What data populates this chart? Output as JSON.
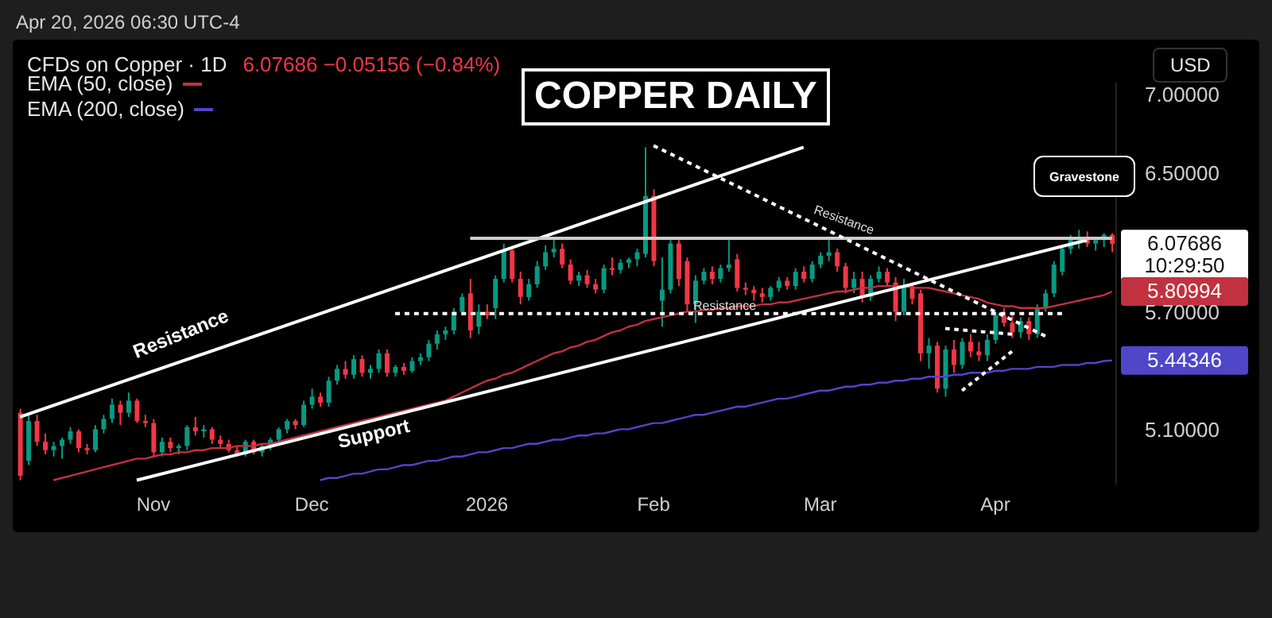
{
  "chart_data": {
    "type": "candlestick",
    "title": "COPPER DAILY",
    "subtitle": "CFDs on Copper · 1D",
    "annotations": [
      "Apr 20, 2026 06:30 UTC-4",
      "6.07686 −0.05156 (−0.84%)",
      "USD",
      "Resistance",
      "Support",
      "Resistance",
      "Resistance",
      "Gravestone",
      "10:29:50",
      "6.07686",
      "5.80994",
      "5.44346"
    ],
    "categories": [
      null,
      null,
      null,
      null,
      null,
      null,
      null,
      null,
      null,
      null,
      null,
      null,
      null,
      null,
      null,
      null,
      "Nov",
      null,
      null,
      null,
      null,
      null,
      null,
      null,
      null,
      null,
      null,
      null,
      null,
      null,
      null,
      null,
      null,
      null,
      null,
      "Dec",
      null,
      null,
      null,
      null,
      null,
      null,
      null,
      null,
      null,
      null,
      null,
      null,
      null,
      null,
      null,
      null,
      null,
      null,
      null,
      null,
      "2026",
      null,
      null,
      null,
      null,
      null,
      null,
      null,
      null,
      null,
      null,
      null,
      null,
      null,
      null,
      null,
      null,
      null,
      null,
      null,
      "Feb",
      null,
      null,
      null,
      null,
      null,
      null,
      null,
      null,
      null,
      null,
      null,
      null,
      null,
      null,
      null,
      null,
      null,
      null,
      null,
      "Mar",
      null,
      null,
      null,
      null,
      null,
      null,
      null,
      null,
      null,
      null,
      null,
      null,
      null,
      null,
      null,
      null,
      null,
      null,
      null,
      null,
      "Apr",
      null,
      null,
      null,
      null,
      null,
      null,
      null,
      null,
      null,
      null,
      null,
      null,
      null,
      null
    ],
    "ohlc": [
      [
        5.18,
        5.2,
        4.86,
        4.88
      ],
      [
        4.95,
        5.17,
        4.93,
        5.14
      ],
      [
        5.14,
        5.17,
        5.02,
        5.04
      ],
      [
        5.04,
        5.08,
        4.98,
        5.0
      ],
      [
        5.0,
        5.04,
        4.97,
        5.02
      ],
      [
        5.02,
        5.06,
        4.96,
        5.05
      ],
      [
        5.05,
        5.11,
        5.03,
        5.09
      ],
      [
        5.09,
        5.1,
        4.99,
        5.01
      ],
      [
        5.01,
        5.03,
        4.98,
        5.0
      ],
      [
        5.0,
        5.12,
        4.99,
        5.1
      ],
      [
        5.1,
        5.17,
        5.08,
        5.15
      ],
      [
        5.15,
        5.25,
        5.13,
        5.22
      ],
      [
        5.22,
        5.24,
        5.12,
        5.18
      ],
      [
        5.18,
        5.28,
        5.16,
        5.24
      ],
      [
        5.24,
        5.25,
        5.13,
        5.14
      ],
      [
        5.14,
        5.17,
        5.11,
        5.13
      ],
      [
        5.13,
        5.15,
        4.97,
        4.99
      ],
      [
        4.99,
        5.06,
        4.97,
        5.04
      ],
      [
        5.04,
        5.06,
        4.99,
        5.01
      ],
      [
        5.01,
        5.03,
        4.98,
        5.02
      ],
      [
        5.02,
        5.12,
        5.0,
        5.11
      ],
      [
        5.11,
        5.16,
        5.07,
        5.09
      ],
      [
        5.09,
        5.12,
        5.06,
        5.1
      ],
      [
        5.1,
        5.11,
        5.03,
        5.05
      ],
      [
        5.05,
        5.07,
        5.01,
        5.03
      ],
      [
        5.03,
        5.05,
        4.99,
        5.0
      ],
      [
        5.0,
        5.02,
        4.97,
        4.98
      ],
      [
        4.98,
        5.05,
        4.97,
        5.04
      ],
      [
        5.04,
        5.05,
        4.98,
        4.99
      ],
      [
        4.99,
        5.03,
        4.97,
        5.02
      ],
      [
        5.02,
        5.06,
        5.0,
        5.05
      ],
      [
        5.05,
        5.11,
        5.04,
        5.1
      ],
      [
        5.1,
        5.15,
        5.08,
        5.14
      ],
      [
        5.14,
        5.15,
        5.1,
        5.12
      ],
      [
        5.12,
        5.24,
        5.11,
        5.22
      ],
      [
        5.22,
        5.3,
        5.2,
        5.26
      ],
      [
        5.26,
        5.28,
        5.21,
        5.23
      ],
      [
        5.23,
        5.36,
        5.21,
        5.34
      ],
      [
        5.34,
        5.42,
        5.32,
        5.4
      ],
      [
        5.4,
        5.44,
        5.35,
        5.37
      ],
      [
        5.37,
        5.47,
        5.35,
        5.45
      ],
      [
        5.45,
        5.47,
        5.36,
        5.38
      ],
      [
        5.38,
        5.42,
        5.35,
        5.4
      ],
      [
        5.4,
        5.5,
        5.38,
        5.48
      ],
      [
        5.48,
        5.5,
        5.36,
        5.38
      ],
      [
        5.38,
        5.42,
        5.36,
        5.41
      ],
      [
        5.41,
        5.43,
        5.37,
        5.39
      ],
      [
        5.39,
        5.46,
        5.38,
        5.44
      ],
      [
        5.44,
        5.48,
        5.42,
        5.46
      ],
      [
        5.46,
        5.55,
        5.44,
        5.53
      ],
      [
        5.53,
        5.6,
        5.5,
        5.58
      ],
      [
        5.58,
        5.62,
        5.55,
        5.6
      ],
      [
        5.6,
        5.72,
        5.58,
        5.7
      ],
      [
        5.7,
        5.8,
        5.68,
        5.78
      ],
      [
        5.8,
        5.88,
        5.56,
        5.6
      ],
      [
        5.62,
        5.74,
        5.58,
        5.7
      ],
      [
        5.7,
        5.74,
        5.66,
        5.68
      ],
      [
        5.72,
        5.9,
        5.66,
        5.88
      ],
      [
        5.88,
        6.08,
        5.86,
        6.04
      ],
      [
        6.04,
        6.06,
        5.86,
        5.88
      ],
      [
        5.88,
        5.92,
        5.74,
        5.78
      ],
      [
        5.78,
        5.88,
        5.76,
        5.85
      ],
      [
        5.85,
        5.98,
        5.83,
        5.95
      ],
      [
        5.95,
        6.07,
        5.93,
        6.03
      ],
      [
        6.03,
        6.1,
        6.0,
        6.05
      ],
      [
        6.05,
        6.08,
        5.94,
        5.96
      ],
      [
        5.96,
        5.99,
        5.85,
        5.87
      ],
      [
        5.87,
        5.92,
        5.84,
        5.9
      ],
      [
        5.9,
        5.93,
        5.83,
        5.85
      ],
      [
        5.85,
        5.88,
        5.8,
        5.82
      ],
      [
        5.82,
        5.96,
        5.8,
        5.94
      ],
      [
        5.94,
        6.0,
        5.9,
        5.93
      ],
      [
        5.93,
        5.99,
        5.91,
        5.97
      ],
      [
        5.97,
        6.0,
        5.94,
        5.99
      ],
      [
        5.99,
        6.05,
        5.95,
        6.03
      ],
      [
        6.02,
        6.66,
        6.0,
        6.36
      ],
      [
        6.36,
        6.4,
        5.95,
        5.98
      ],
      [
        5.76,
        6.0,
        5.62,
        5.82
      ],
      [
        5.82,
        6.1,
        5.8,
        6.08
      ],
      [
        6.08,
        6.1,
        5.84,
        5.88
      ],
      [
        5.98,
        6.0,
        5.7,
        5.74
      ],
      [
        5.74,
        5.9,
        5.64,
        5.87
      ],
      [
        5.87,
        5.94,
        5.85,
        5.92
      ],
      [
        5.92,
        5.95,
        5.85,
        5.88
      ],
      [
        5.88,
        5.96,
        5.86,
        5.94
      ],
      [
        5.94,
        6.1,
        5.92,
        5.96
      ],
      [
        5.99,
        6.02,
        5.81,
        5.83
      ],
      [
        5.83,
        5.86,
        5.79,
        5.82
      ],
      [
        5.82,
        5.84,
        5.76,
        5.8
      ],
      [
        5.8,
        5.83,
        5.75,
        5.78
      ],
      [
        5.78,
        5.84,
        5.76,
        5.83
      ],
      [
        5.83,
        5.89,
        5.81,
        5.87
      ],
      [
        5.87,
        5.89,
        5.82,
        5.84
      ],
      [
        5.84,
        5.94,
        5.82,
        5.92
      ],
      [
        5.92,
        5.95,
        5.86,
        5.88
      ],
      [
        5.88,
        5.98,
        5.86,
        5.96
      ],
      [
        5.96,
        6.03,
        5.94,
        6.01
      ],
      [
        6.01,
        6.1,
        5.98,
        6.03
      ],
      [
        6.03,
        6.05,
        5.92,
        5.95
      ],
      [
        5.95,
        5.97,
        5.8,
        5.83
      ],
      [
        5.83,
        5.92,
        5.8,
        5.88
      ],
      [
        5.88,
        5.92,
        5.75,
        5.78
      ],
      [
        5.78,
        5.9,
        5.76,
        5.88
      ],
      [
        5.88,
        5.95,
        5.86,
        5.92
      ],
      [
        5.92,
        5.94,
        5.84,
        5.86
      ],
      [
        5.86,
        5.89,
        5.65,
        5.7
      ],
      [
        5.7,
        5.88,
        5.68,
        5.84
      ],
      [
        5.84,
        5.86,
        5.74,
        5.77
      ],
      [
        5.8,
        5.82,
        5.44,
        5.48
      ],
      [
        5.48,
        5.56,
        5.4,
        5.52
      ],
      [
        5.52,
        5.54,
        5.28,
        5.3
      ],
      [
        5.3,
        5.52,
        5.26,
        5.5
      ],
      [
        5.5,
        5.55,
        5.38,
        5.42
      ],
      [
        5.42,
        5.56,
        5.4,
        5.54
      ],
      [
        5.54,
        5.58,
        5.46,
        5.49
      ],
      [
        5.49,
        5.54,
        5.44,
        5.47
      ],
      [
        5.47,
        5.58,
        5.44,
        5.55
      ],
      [
        5.55,
        5.7,
        5.53,
        5.68
      ],
      [
        5.68,
        5.72,
        5.62,
        5.64
      ],
      [
        5.64,
        5.68,
        5.56,
        5.59
      ],
      [
        5.59,
        5.67,
        5.56,
        5.65
      ],
      [
        5.65,
        5.67,
        5.55,
        5.58
      ],
      [
        5.58,
        5.74,
        5.56,
        5.72
      ],
      [
        5.72,
        5.82,
        5.7,
        5.8
      ],
      [
        5.8,
        5.98,
        5.78,
        5.96
      ],
      [
        5.92,
        6.07,
        5.9,
        6.05
      ],
      [
        6.05,
        6.13,
        6.02,
        6.1
      ],
      [
        6.1,
        6.16,
        6.05,
        6.12
      ],
      [
        6.12,
        6.15,
        6.06,
        6.08
      ],
      [
        6.08,
        6.12,
        6.04,
        6.1
      ],
      [
        6.1,
        6.14,
        6.06,
        6.13
      ],
      [
        6.13,
        6.14,
        6.03,
        6.07686
      ]
    ],
    "ylim": [
      4.84,
      7.08
    ],
    "yticks": [
      {
        "value": 5.1,
        "label": "5.10000"
      },
      {
        "value": 5.7,
        "label": "5.70000"
      },
      {
        "value": 6.5,
        "label": "6.50000"
      },
      {
        "value": 7.0,
        "label": "7.00000"
      }
    ],
    "log": true,
    "legend": "top left",
    "data_labels": false,
    "series": [
      {
        "type": "line",
        "name": "EMA (50, close)",
        "color": "#c2313f",
        "values": [
          null,
          null,
          null,
          null,
          4.86,
          4.87,
          4.88,
          4.89,
          4.9,
          4.91,
          4.92,
          4.93,
          4.94,
          4.95,
          4.96,
          4.96,
          4.97,
          4.98,
          4.98,
          4.99,
          4.99,
          5.0,
          5.0,
          5.01,
          5.01,
          5.01,
          5.02,
          5.02,
          5.02,
          5.03,
          5.03,
          5.04,
          5.05,
          5.06,
          5.07,
          5.08,
          5.09,
          5.1,
          5.11,
          5.12,
          5.13,
          5.14,
          5.15,
          5.16,
          5.17,
          5.18,
          5.19,
          5.2,
          5.21,
          5.22,
          5.23,
          5.24,
          5.26,
          5.28,
          5.3,
          5.32,
          5.34,
          5.35,
          5.37,
          5.38,
          5.4,
          5.42,
          5.44,
          5.46,
          5.48,
          5.49,
          5.51,
          5.52,
          5.54,
          5.55,
          5.57,
          5.59,
          5.6,
          5.62,
          5.63,
          5.65,
          5.66,
          5.67,
          5.68,
          5.69,
          5.7,
          5.7,
          5.71,
          5.71,
          5.72,
          5.72,
          5.73,
          5.73,
          5.73,
          5.74,
          5.74,
          5.75,
          5.75,
          5.76,
          5.77,
          5.78,
          5.79,
          5.8,
          5.81,
          5.81,
          5.82,
          5.83,
          5.83,
          5.84,
          5.84,
          5.84,
          5.84,
          5.83,
          5.83,
          5.83,
          5.82,
          5.81,
          5.8,
          5.79,
          5.78,
          5.77,
          5.75,
          5.74,
          5.73,
          5.73,
          5.72,
          5.72,
          5.72,
          5.72,
          5.73,
          5.74,
          5.75,
          5.76,
          5.77,
          5.78,
          5.79,
          5.80994
        ]
      },
      {
        "type": "line",
        "name": "EMA (200, close)",
        "color": "#4f46c8",
        "values": [
          null,
          null,
          null,
          null,
          null,
          null,
          null,
          null,
          null,
          null,
          null,
          null,
          null,
          null,
          null,
          null,
          null,
          null,
          null,
          null,
          null,
          null,
          null,
          null,
          null,
          null,
          null,
          null,
          null,
          null,
          null,
          null,
          null,
          null,
          null,
          null,
          4.86,
          4.87,
          4.87,
          4.88,
          4.89,
          4.89,
          4.9,
          4.91,
          4.91,
          4.92,
          4.93,
          4.93,
          4.94,
          4.95,
          4.95,
          4.96,
          4.97,
          4.97,
          4.98,
          4.99,
          4.99,
          5.0,
          5.01,
          5.01,
          5.02,
          5.03,
          5.03,
          5.04,
          5.05,
          5.05,
          5.06,
          5.07,
          5.07,
          5.08,
          5.08,
          5.09,
          5.1,
          5.1,
          5.11,
          5.12,
          5.13,
          5.13,
          5.14,
          5.15,
          5.16,
          5.17,
          5.17,
          5.18,
          5.19,
          5.2,
          5.21,
          5.21,
          5.22,
          5.23,
          5.24,
          5.25,
          5.25,
          5.26,
          5.27,
          5.28,
          5.29,
          5.29,
          5.3,
          5.31,
          5.31,
          5.32,
          5.32,
          5.33,
          5.33,
          5.34,
          5.34,
          5.35,
          5.35,
          5.36,
          5.36,
          5.36,
          5.37,
          5.37,
          5.38,
          5.38,
          5.38,
          5.39,
          5.39,
          5.4,
          5.4,
          5.4,
          5.41,
          5.41,
          5.41,
          5.42,
          5.42,
          5.42,
          5.43,
          5.43,
          5.44,
          5.44346
        ]
      },
      {
        "type": "line",
        "color": "#ffffff",
        "line_style": "solid",
        "values": [
          5.16,
          null,
          null,
          null,
          null,
          null,
          null,
          null,
          null,
          null,
          null,
          null,
          null,
          null,
          null,
          null,
          null,
          null,
          null,
          null,
          null,
          null,
          null,
          null,
          null,
          null,
          null,
          null,
          null,
          null,
          null,
          null,
          null,
          null,
          null,
          null,
          null,
          null,
          null,
          null,
          null,
          null,
          null,
          null,
          null,
          null,
          null,
          null,
          null,
          null,
          null,
          null,
          null,
          null,
          null,
          null,
          null,
          null,
          null,
          null,
          null,
          null,
          null,
          null,
          null,
          null,
          null,
          null,
          null,
          null,
          null,
          null,
          null,
          null,
          null,
          null,
          null,
          null,
          null,
          null,
          null,
          null,
          null,
          null,
          null,
          null,
          null,
          null,
          null,
          null,
          null,
          null,
          null,
          null,
          6.66,
          null,
          null,
          null,
          null,
          null,
          null,
          null,
          null,
          null,
          null,
          null,
          null,
          null,
          null,
          null,
          null,
          null,
          null,
          null,
          null,
          null,
          null,
          null,
          null,
          null,
          null,
          null,
          null,
          null,
          null,
          null,
          null,
          null,
          null,
          null,
          null,
          null
        ]
      },
      {
        "type": "line",
        "color": "#ffffff",
        "line_style": "solid",
        "values": [
          null,
          null,
          null,
          null,
          null,
          null,
          null,
          null,
          null,
          null,
          null,
          null,
          null,
          null,
          4.86,
          null,
          null,
          null,
          null,
          null,
          null,
          null,
          null,
          null,
          null,
          null,
          null,
          null,
          null,
          null,
          null,
          null,
          null,
          null,
          null,
          null,
          null,
          null,
          null,
          null,
          null,
          null,
          null,
          null,
          null,
          null,
          null,
          null,
          null,
          null,
          null,
          null,
          null,
          null,
          null,
          null,
          null,
          null,
          null,
          null,
          null,
          null,
          null,
          null,
          null,
          null,
          null,
          null,
          null,
          null,
          null,
          null,
          null,
          null,
          null,
          null,
          null,
          null,
          null,
          null,
          null,
          null,
          null,
          null,
          null,
          null,
          null,
          null,
          null,
          null,
          null,
          null,
          null,
          null,
          null,
          null,
          null,
          null,
          null,
          null,
          null,
          null,
          null,
          null,
          null,
          null,
          null,
          null,
          null,
          null,
          null,
          null,
          null,
          null,
          null,
          null,
          null,
          null,
          null,
          null,
          null,
          null,
          null,
          null,
          null,
          null,
          null,
          null,
          6.1,
          null,
          null,
          null
        ]
      },
      {
        "type": "line",
        "color": "#cccccc",
        "line_style": "solid",
        "values": [
          null,
          null,
          null,
          null,
          null,
          null,
          null,
          null,
          null,
          null,
          null,
          null,
          null,
          null,
          null,
          null,
          null,
          null,
          null,
          null,
          null,
          null,
          null,
          null,
          null,
          null,
          null,
          null,
          null,
          null,
          null,
          null,
          null,
          null,
          null,
          null,
          null,
          null,
          null,
          null,
          null,
          null,
          null,
          null,
          null,
          null,
          null,
          null,
          null,
          null,
          null,
          null,
          null,
          null,
          6.11,
          null,
          null,
          null,
          null,
          null,
          null,
          null,
          null,
          null,
          null,
          null,
          null,
          null,
          null,
          null,
          null,
          null,
          null,
          null,
          null,
          null,
          null,
          null,
          null,
          null,
          null,
          null,
          null,
          null,
          null,
          null,
          null,
          null,
          null,
          null,
          null,
          null,
          null,
          null,
          null,
          null,
          null,
          null,
          null,
          null,
          null,
          null,
          null,
          null,
          null,
          null,
          null,
          null,
          null,
          null,
          null,
          null,
          null,
          null,
          null,
          null,
          null,
          null,
          null,
          null,
          null,
          null,
          null,
          null,
          null,
          null,
          null,
          null,
          null,
          null,
          null,
          6.11
        ]
      },
      {
        "type": "line",
        "color": "#ffffff",
        "line_style": "dotted",
        "values": [
          null,
          null,
          null,
          null,
          null,
          null,
          null,
          null,
          null,
          null,
          null,
          null,
          null,
          null,
          null,
          null,
          null,
          null,
          null,
          null,
          null,
          null,
          null,
          null,
          null,
          null,
          null,
          null,
          null,
          null,
          null,
          null,
          null,
          null,
          null,
          null,
          null,
          null,
          null,
          null,
          null,
          null,
          null,
          null,
          null,
          5.69,
          null,
          null,
          null,
          null,
          null,
          null,
          null,
          null,
          null,
          null,
          null,
          null,
          null,
          null,
          null,
          null,
          null,
          null,
          null,
          null,
          null,
          null,
          null,
          null,
          null,
          null,
          null,
          null,
          null,
          null,
          null,
          null,
          null,
          null,
          null,
          null,
          null,
          null,
          null,
          null,
          null,
          null,
          null,
          null,
          null,
          null,
          null,
          null,
          null,
          null,
          null,
          null,
          null,
          null,
          null,
          null,
          null,
          null,
          null,
          null,
          null,
          null,
          null,
          null,
          null,
          null,
          null,
          null,
          null,
          null,
          null,
          null,
          null,
          null,
          null,
          null,
          null,
          null,
          null,
          5.69,
          null,
          null,
          null,
          null,
          null,
          null
        ]
      },
      {
        "type": "line",
        "color": "#ffffff",
        "line_style": "dotted",
        "values": [
          null,
          null,
          null,
          null,
          null,
          null,
          null,
          null,
          null,
          null,
          null,
          null,
          null,
          null,
          null,
          null,
          null,
          null,
          null,
          null,
          null,
          null,
          null,
          null,
          null,
          null,
          null,
          null,
          null,
          null,
          null,
          null,
          null,
          null,
          null,
          null,
          null,
          null,
          null,
          null,
          null,
          null,
          null,
          null,
          null,
          null,
          null,
          null,
          null,
          null,
          null,
          null,
          null,
          null,
          null,
          null,
          null,
          null,
          null,
          null,
          null,
          null,
          null,
          null,
          null,
          null,
          null,
          null,
          null,
          null,
          null,
          null,
          null,
          null,
          null,
          null,
          6.67,
          null,
          null,
          null,
          null,
          null,
          null,
          null,
          null,
          null,
          null,
          null,
          null,
          null,
          null,
          null,
          null,
          null,
          null,
          null,
          null,
          null,
          null,
          null,
          null,
          null,
          null,
          null,
          null,
          null,
          null,
          null,
          null,
          null,
          null,
          null,
          null,
          null,
          null,
          null,
          null,
          null,
          null,
          null,
          null,
          null,
          null,
          5.57,
          null,
          null,
          null,
          null,
          null,
          null,
          null,
          null
        ]
      },
      {
        "type": "line",
        "color": "#ffffff",
        "line_style": "dotted",
        "values": [
          null,
          null,
          null,
          null,
          null,
          null,
          null,
          null,
          null,
          null,
          null,
          null,
          null,
          null,
          null,
          null,
          null,
          null,
          null,
          null,
          null,
          null,
          null,
          null,
          null,
          null,
          null,
          null,
          null,
          null,
          null,
          null,
          null,
          null,
          null,
          null,
          null,
          null,
          null,
          null,
          null,
          null,
          null,
          null,
          null,
          null,
          null,
          null,
          null,
          null,
          null,
          null,
          null,
          null,
          null,
          null,
          null,
          null,
          null,
          null,
          null,
          null,
          null,
          null,
          null,
          null,
          null,
          null,
          null,
          null,
          null,
          null,
          null,
          null,
          null,
          null,
          null,
          null,
          null,
          null,
          null,
          null,
          null,
          null,
          null,
          null,
          null,
          null,
          null,
          null,
          null,
          null,
          null,
          null,
          null,
          null,
          null,
          null,
          null,
          null,
          null,
          null,
          null,
          null,
          null,
          null,
          null,
          null,
          null,
          null,
          null,
          5.61,
          null,
          null,
          null,
          null,
          null,
          null,
          null,
          5.58,
          null,
          null,
          null,
          null,
          null,
          null,
          null,
          null,
          null,
          null,
          null,
          null
        ]
      },
      {
        "type": "line",
        "color": "#ffffff",
        "line_style": "dotted",
        "values": [
          null,
          null,
          null,
          null,
          null,
          null,
          null,
          null,
          null,
          null,
          null,
          null,
          null,
          null,
          null,
          null,
          null,
          null,
          null,
          null,
          null,
          null,
          null,
          null,
          null,
          null,
          null,
          null,
          null,
          null,
          null,
          null,
          null,
          null,
          null,
          null,
          null,
          null,
          null,
          null,
          null,
          null,
          null,
          null,
          null,
          null,
          null,
          null,
          null,
          null,
          null,
          null,
          null,
          null,
          null,
          null,
          null,
          null,
          null,
          null,
          null,
          null,
          null,
          null,
          null,
          null,
          null,
          null,
          null,
          null,
          null,
          null,
          null,
          null,
          null,
          null,
          null,
          null,
          null,
          null,
          null,
          null,
          null,
          null,
          null,
          null,
          null,
          null,
          null,
          null,
          null,
          null,
          null,
          null,
          null,
          null,
          null,
          null,
          null,
          null,
          null,
          null,
          null,
          null,
          null,
          null,
          null,
          null,
          null,
          null,
          null,
          null,
          null,
          5.29,
          null,
          null,
          null,
          null,
          null,
          5.49,
          null,
          null,
          null,
          null,
          null,
          null,
          null,
          null,
          null,
          null,
          null,
          null
        ]
      }
    ]
  }
}
